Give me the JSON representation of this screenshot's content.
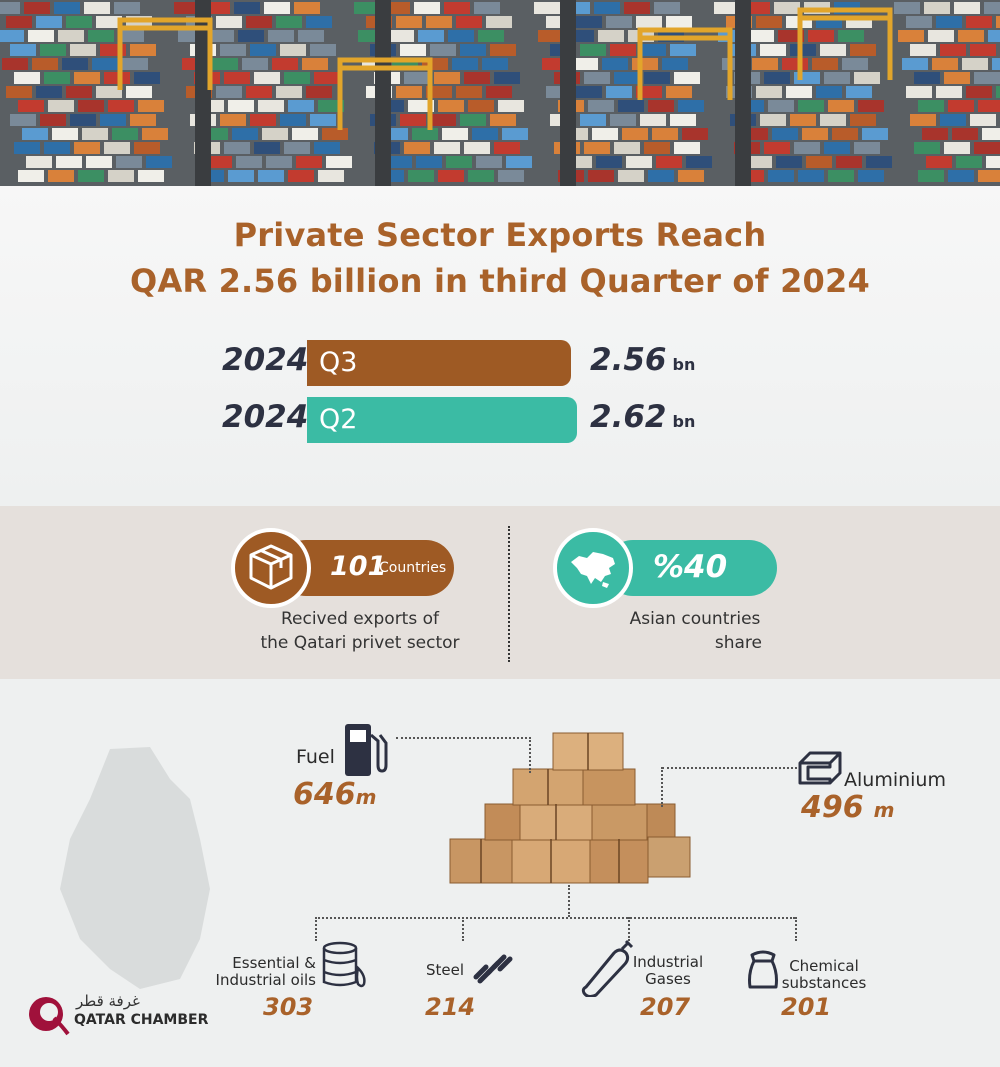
{
  "title": {
    "line1": "Private Sector Exports Reach",
    "line2": "QAR 2.56 billion in third Quarter of 2024"
  },
  "chart_data": {
    "type": "bar",
    "categories": [
      "2024 Q3",
      "2024 Q2"
    ],
    "values": [
      2.56,
      2.62
    ],
    "bars": [
      {
        "year": "2024",
        "quarter": "Q3",
        "value": "2.56",
        "unit": "bn",
        "color": "#9e5a24"
      },
      {
        "year": "2024",
        "quarter": "Q2",
        "value": "2.62",
        "unit": "bn",
        "color": "#3bbba4"
      }
    ]
  },
  "stats": {
    "countries": {
      "number": "101",
      "unit": "Countries",
      "caption1": "Recived exports of",
      "caption2": "the Qatari privet sector",
      "icon": "box-icon",
      "color": "#9e5a24"
    },
    "asia": {
      "number": "%40",
      "caption1": "Asian countries",
      "caption2": "share",
      "icon": "asia-map-icon",
      "color": "#3bbba4"
    }
  },
  "products": {
    "fuel": {
      "label": "Fuel",
      "value": "646",
      "unit": "m",
      "icon": "fuel-pump-icon"
    },
    "aluminium": {
      "label": "Aluminium",
      "value": "496",
      "unit": "m",
      "icon": "aluminium-beam-icon"
    },
    "oils": {
      "label1": "Essential &",
      "label2": "Industrial oils",
      "value": "303",
      "icon": "oil-barrel-icon"
    },
    "steel": {
      "label": "Steel",
      "value": "214",
      "icon": "chain-icon"
    },
    "gases": {
      "label1": "Industrial",
      "label2": "Gases",
      "value": "207",
      "icon": "gas-cylinder-icon"
    },
    "chemical": {
      "label1": "Chemical",
      "label2": "substances",
      "value": "201",
      "icon": "sack-icon"
    }
  },
  "logo": {
    "arabic": "غرفة قطر",
    "english": "QATAR CHAMBER"
  },
  "colors": {
    "brown": "#9e5a24",
    "teal": "#3bbba4",
    "title": "#a9622a",
    "dark": "#2d3142"
  }
}
